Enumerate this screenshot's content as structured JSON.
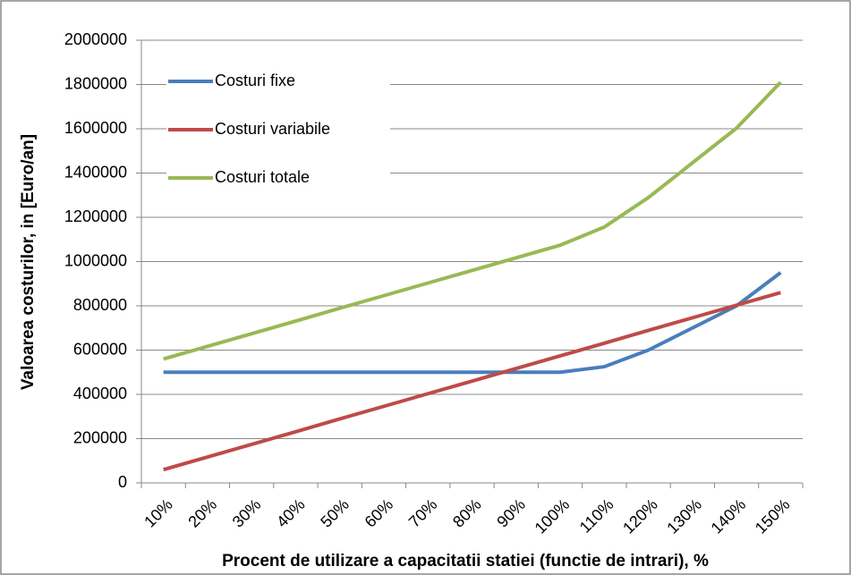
{
  "chart_data": {
    "type": "line",
    "x_label": "Procent de utilizare a capacitatii statiei (functie de intrari), %",
    "y_label": "Valoarea costurilor, in [Euro/an]",
    "categories": [
      "10%",
      "20%",
      "30%",
      "40%",
      "50%",
      "60%",
      "70%",
      "80%",
      "90%",
      "100%",
      "110%",
      "120%",
      "130%",
      "140%",
      "150%"
    ],
    "series": [
      {
        "name": "Costuri fixe",
        "color": "#4a7ebb",
        "values": [
          500000,
          500000,
          500000,
          500000,
          500000,
          500000,
          500000,
          500000,
          500000,
          500000,
          525000,
          600000,
          700000,
          800000,
          950000
        ]
      },
      {
        "name": "Costuri variabile",
        "color": "#be4b48",
        "values": [
          60000,
          117000,
          174000,
          231000,
          289000,
          346000,
          403000,
          460000,
          517000,
          574000,
          631000,
          689000,
          746000,
          803000,
          860000
        ]
      },
      {
        "name": "Costuri totale",
        "color": "#98b954",
        "values": [
          560000,
          617000,
          674000,
          731000,
          789000,
          846000,
          903000,
          960000,
          1017000,
          1074000,
          1156000,
          1289000,
          1446000,
          1603000,
          1810000
        ]
      }
    ],
    "ylim": [
      0,
      2000000
    ],
    "yticks": [
      0,
      200000,
      400000,
      600000,
      800000,
      1000000,
      1200000,
      1400000,
      1600000,
      1800000,
      2000000
    ],
    "grid": true,
    "legend": "upper-left"
  }
}
